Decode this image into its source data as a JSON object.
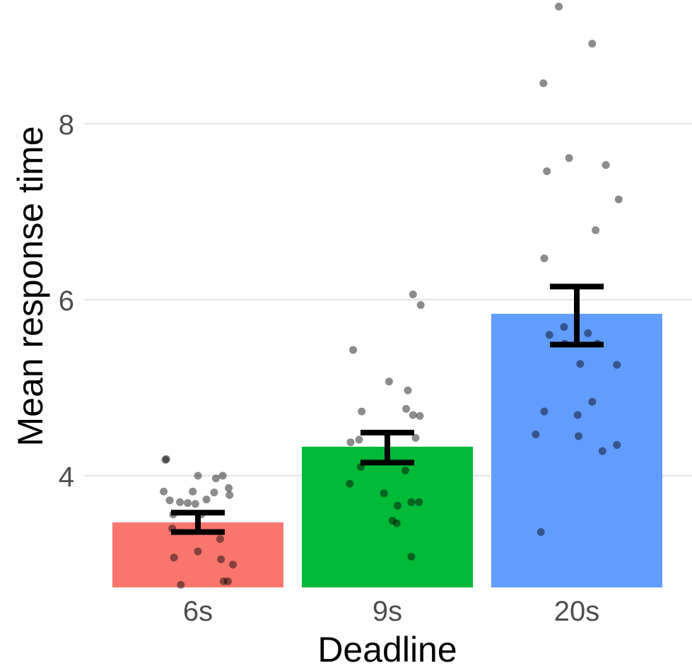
{
  "chart_data": {
    "type": "bar",
    "title": "",
    "xlabel": "Deadline",
    "ylabel": "Mean response time",
    "categories": [
      "6s",
      "9s",
      "20s"
    ],
    "values": [
      3.47,
      4.33,
      5.84
    ],
    "error_bars": [
      {
        "low": 3.36,
        "high": 3.58
      },
      {
        "low": 4.15,
        "high": 4.49
      },
      {
        "low": 5.49,
        "high": 6.15
      }
    ],
    "colors": [
      "#F8766D",
      "#00BA38",
      "#619CFF"
    ],
    "ylim": [
      2.73,
      9.33
    ],
    "yticks": [
      "4",
      "6",
      "8"
    ],
    "ytick_values": [
      4,
      6,
      8
    ],
    "grid": "horizontal major",
    "legend": "none",
    "points": [
      [
        {
          "jitter": -0.37,
          "y": 4.19
        },
        {
          "jitter": -0.38,
          "y": 4.18
        },
        {
          "jitter": 0.0,
          "y": 4.0
        },
        {
          "jitter": 0.29,
          "y": 4.0
        },
        {
          "jitter": 0.21,
          "y": 3.97
        },
        {
          "jitter": 0.36,
          "y": 3.86
        },
        {
          "jitter": 0.37,
          "y": 3.78
        },
        {
          "jitter": -0.4,
          "y": 3.82
        },
        {
          "jitter": -0.06,
          "y": 3.82
        },
        {
          "jitter": 0.19,
          "y": 3.81
        },
        {
          "jitter": -0.33,
          "y": 3.72
        },
        {
          "jitter": -0.21,
          "y": 3.7
        },
        {
          "jitter": -0.12,
          "y": 3.69
        },
        {
          "jitter": -0.03,
          "y": 3.68
        },
        {
          "jitter": 0.1,
          "y": 3.73
        },
        {
          "jitter": -0.29,
          "y": 3.56
        },
        {
          "jitter": 0.04,
          "y": 3.56
        },
        {
          "jitter": -0.3,
          "y": 3.4
        },
        {
          "jitter": 0.26,
          "y": 3.28
        },
        {
          "jitter": 0.0,
          "y": 3.14
        },
        {
          "jitter": -0.28,
          "y": 3.07
        },
        {
          "jitter": 0.27,
          "y": 3.05
        },
        {
          "jitter": 0.41,
          "y": 2.99
        },
        {
          "jitter": 0.3,
          "y": 2.8
        },
        {
          "jitter": 0.35,
          "y": 2.8
        },
        {
          "jitter": -0.2,
          "y": 2.76
        }
      ],
      [
        {
          "jitter": -0.4,
          "y": 5.43
        },
        {
          "jitter": 0.3,
          "y": 6.06
        },
        {
          "jitter": 0.39,
          "y": 5.94
        },
        {
          "jitter": 0.02,
          "y": 5.07
        },
        {
          "jitter": 0.24,
          "y": 4.97
        },
        {
          "jitter": -0.3,
          "y": 4.73
        },
        {
          "jitter": 0.22,
          "y": 4.76
        },
        {
          "jitter": 0.38,
          "y": 4.68
        },
        {
          "jitter": 0.3,
          "y": 4.69
        },
        {
          "jitter": -0.43,
          "y": 4.38
        },
        {
          "jitter": -0.33,
          "y": 4.41
        },
        {
          "jitter": 0.33,
          "y": 4.43
        },
        {
          "jitter": -0.31,
          "y": 4.1
        },
        {
          "jitter": 0.21,
          "y": 4.06
        },
        {
          "jitter": -0.44,
          "y": 3.91
        },
        {
          "jitter": -0.04,
          "y": 3.8
        },
        {
          "jitter": 0.37,
          "y": 3.7
        },
        {
          "jitter": 0.28,
          "y": 3.7
        },
        {
          "jitter": 0.12,
          "y": 3.66
        },
        {
          "jitter": 0.06,
          "y": 3.49
        },
        {
          "jitter": 0.11,
          "y": 3.46
        },
        {
          "jitter": 0.28,
          "y": 3.08
        }
      ],
      [
        {
          "jitter": -0.21,
          "y": 9.33
        },
        {
          "jitter": 0.18,
          "y": 8.91
        },
        {
          "jitter": -0.39,
          "y": 8.46
        },
        {
          "jitter": -0.09,
          "y": 7.61
        },
        {
          "jitter": 0.34,
          "y": 7.53
        },
        {
          "jitter": -0.35,
          "y": 7.46
        },
        {
          "jitter": 0.49,
          "y": 7.14
        },
        {
          "jitter": 0.22,
          "y": 6.79
        },
        {
          "jitter": -0.38,
          "y": 6.47
        },
        {
          "jitter": -0.15,
          "y": 5.69
        },
        {
          "jitter": -0.32,
          "y": 5.6
        },
        {
          "jitter": 0.13,
          "y": 5.62
        },
        {
          "jitter": -0.14,
          "y": 5.5
        },
        {
          "jitter": 0.24,
          "y": 5.5
        },
        {
          "jitter": 0.04,
          "y": 5.27
        },
        {
          "jitter": 0.47,
          "y": 5.26
        },
        {
          "jitter": -0.38,
          "y": 4.73
        },
        {
          "jitter": 0.18,
          "y": 4.84
        },
        {
          "jitter": 0.01,
          "y": 4.69
        },
        {
          "jitter": -0.48,
          "y": 4.47
        },
        {
          "jitter": 0.02,
          "y": 4.45
        },
        {
          "jitter": 0.3,
          "y": 4.28
        },
        {
          "jitter": 0.47,
          "y": 4.35
        },
        {
          "jitter": -0.42,
          "y": 3.36
        }
      ]
    ]
  }
}
